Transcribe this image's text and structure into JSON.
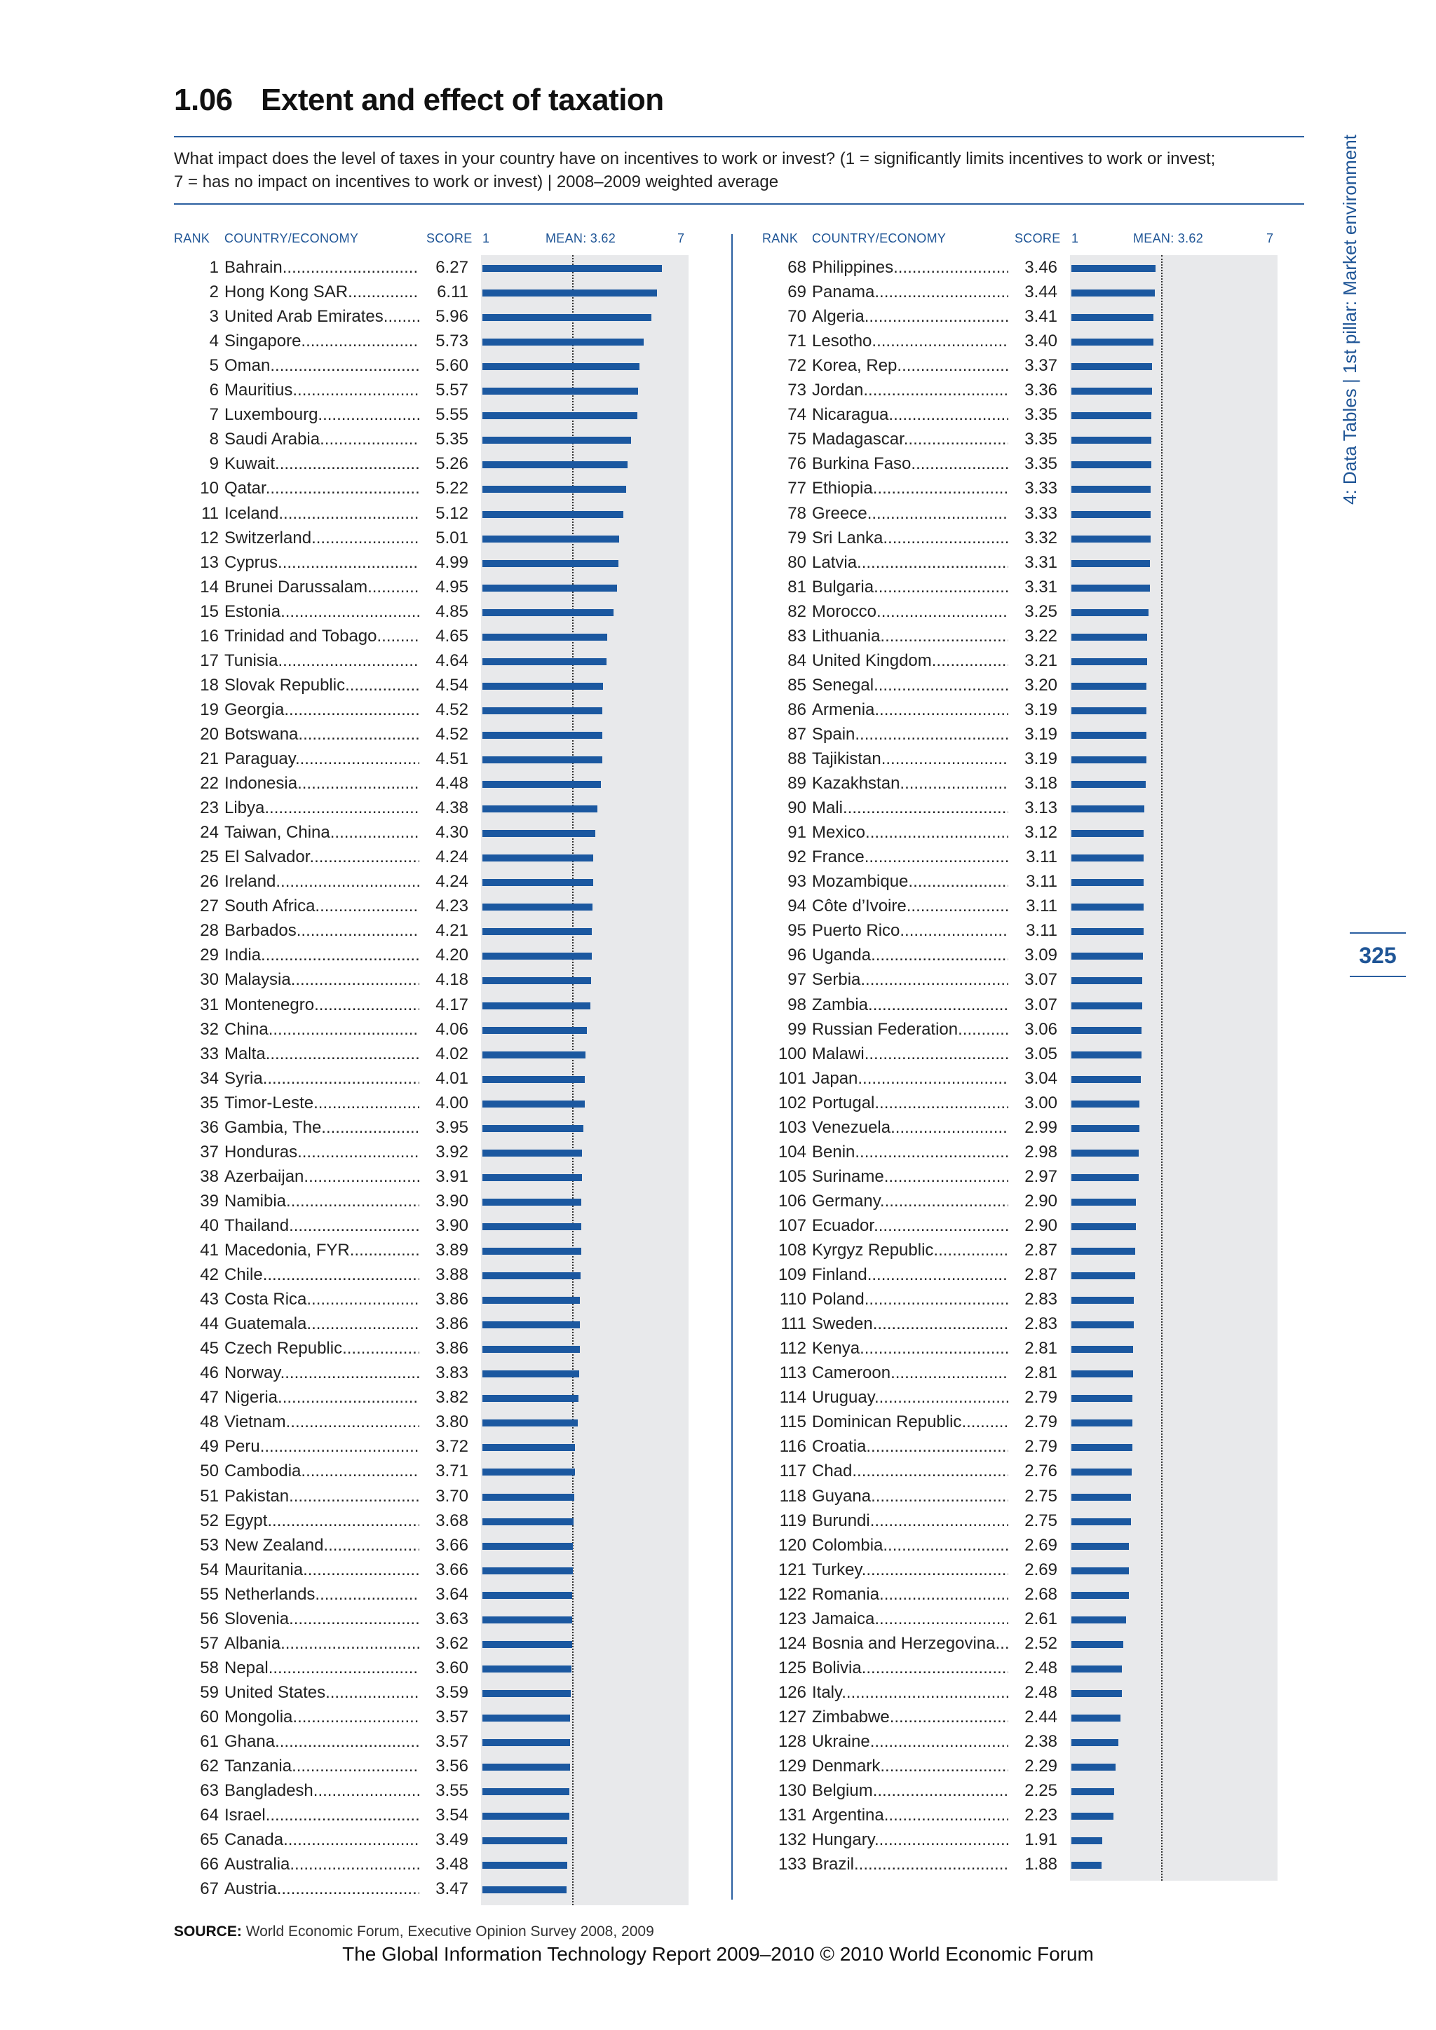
{
  "title": {
    "number": "1.06",
    "text": "Extent and effect of taxation"
  },
  "question_line1": "What impact does the level of taxes in your country have on incentives to work or invest? (1 = significantly limits incentives to work or invest;",
  "question_line2": "7 = has no impact on incentives to work or invest)  |  2008–2009 weighted average",
  "headers": {
    "rank": "RANK",
    "country": "COUNTRY/ECONOMY",
    "score": "SCORE",
    "min": "1",
    "mean": "MEAN: 3.62",
    "max": "7"
  },
  "sidebar": "4: Data Tables  |  1st pillar: Market environment",
  "page_number": "325",
  "source_label": "SOURCE:",
  "source_text": "World Economic Forum, Executive Opinion Survey 2008, 2009",
  "footer": "The Global Information Technology Report 2009–2010 © 2010 World Economic Forum",
  "colors": {
    "accent": "#1b58a0",
    "panel": "#e8e9eb",
    "rule": "#2a5fa0"
  },
  "chart_data": {
    "type": "bar",
    "mean": 3.62,
    "xlim": [
      1,
      7
    ],
    "rows": [
      {
        "rank": "1",
        "country": "Bahrain",
        "score": "6.27"
      },
      {
        "rank": "2",
        "country": "Hong Kong SAR",
        "score": "6.11"
      },
      {
        "rank": "3",
        "country": "United Arab Emirates",
        "score": "5.96"
      },
      {
        "rank": "4",
        "country": "Singapore",
        "score": "5.73"
      },
      {
        "rank": "5",
        "country": "Oman",
        "score": "5.60"
      },
      {
        "rank": "6",
        "country": "Mauritius",
        "score": "5.57"
      },
      {
        "rank": "7",
        "country": "Luxembourg",
        "score": "5.55"
      },
      {
        "rank": "8",
        "country": "Saudi Arabia",
        "score": "5.35"
      },
      {
        "rank": "9",
        "country": "Kuwait",
        "score": "5.26"
      },
      {
        "rank": "10",
        "country": "Qatar",
        "score": "5.22"
      },
      {
        "rank": "11",
        "country": "Iceland",
        "score": "5.12"
      },
      {
        "rank": "12",
        "country": "Switzerland",
        "score": "5.01"
      },
      {
        "rank": "13",
        "country": "Cyprus",
        "score": "4.99"
      },
      {
        "rank": "14",
        "country": "Brunei Darussalam",
        "score": "4.95"
      },
      {
        "rank": "15",
        "country": "Estonia",
        "score": "4.85"
      },
      {
        "rank": "16",
        "country": "Trinidad and Tobago",
        "score": "4.65"
      },
      {
        "rank": "17",
        "country": "Tunisia",
        "score": "4.64"
      },
      {
        "rank": "18",
        "country": "Slovak Republic",
        "score": "4.54"
      },
      {
        "rank": "19",
        "country": "Georgia",
        "score": "4.52"
      },
      {
        "rank": "20",
        "country": "Botswana",
        "score": "4.52"
      },
      {
        "rank": "21",
        "country": "Paraguay",
        "score": "4.51"
      },
      {
        "rank": "22",
        "country": "Indonesia",
        "score": "4.48"
      },
      {
        "rank": "23",
        "country": "Libya",
        "score": "4.38"
      },
      {
        "rank": "24",
        "country": "Taiwan, China",
        "score": "4.30"
      },
      {
        "rank": "25",
        "country": "El Salvador",
        "score": "4.24"
      },
      {
        "rank": "26",
        "country": "Ireland",
        "score": "4.24"
      },
      {
        "rank": "27",
        "country": "South Africa",
        "score": "4.23"
      },
      {
        "rank": "28",
        "country": "Barbados",
        "score": "4.21"
      },
      {
        "rank": "29",
        "country": "India",
        "score": "4.20"
      },
      {
        "rank": "30",
        "country": "Malaysia",
        "score": "4.18"
      },
      {
        "rank": "31",
        "country": "Montenegro",
        "score": "4.17"
      },
      {
        "rank": "32",
        "country": "China",
        "score": "4.06"
      },
      {
        "rank": "33",
        "country": "Malta",
        "score": "4.02"
      },
      {
        "rank": "34",
        "country": "Syria",
        "score": "4.01"
      },
      {
        "rank": "35",
        "country": "Timor-Leste",
        "score": "4.00"
      },
      {
        "rank": "36",
        "country": "Gambia, The",
        "score": "3.95"
      },
      {
        "rank": "37",
        "country": "Honduras",
        "score": "3.92"
      },
      {
        "rank": "38",
        "country": "Azerbaijan",
        "score": "3.91"
      },
      {
        "rank": "39",
        "country": "Namibia",
        "score": "3.90"
      },
      {
        "rank": "40",
        "country": "Thailand",
        "score": "3.90"
      },
      {
        "rank": "41",
        "country": "Macedonia, FYR",
        "score": "3.89"
      },
      {
        "rank": "42",
        "country": "Chile",
        "score": "3.88"
      },
      {
        "rank": "43",
        "country": "Costa Rica",
        "score": "3.86"
      },
      {
        "rank": "44",
        "country": "Guatemala",
        "score": "3.86"
      },
      {
        "rank": "45",
        "country": "Czech Republic",
        "score": "3.86"
      },
      {
        "rank": "46",
        "country": "Norway",
        "score": "3.83"
      },
      {
        "rank": "47",
        "country": "Nigeria",
        "score": "3.82"
      },
      {
        "rank": "48",
        "country": "Vietnam",
        "score": "3.80"
      },
      {
        "rank": "49",
        "country": "Peru",
        "score": "3.72"
      },
      {
        "rank": "50",
        "country": "Cambodia",
        "score": "3.71"
      },
      {
        "rank": "51",
        "country": "Pakistan",
        "score": "3.70"
      },
      {
        "rank": "52",
        "country": "Egypt",
        "score": "3.68"
      },
      {
        "rank": "53",
        "country": "New Zealand",
        "score": "3.66"
      },
      {
        "rank": "54",
        "country": "Mauritania",
        "score": "3.66"
      },
      {
        "rank": "55",
        "country": "Netherlands",
        "score": "3.64"
      },
      {
        "rank": "56",
        "country": "Slovenia",
        "score": "3.63"
      },
      {
        "rank": "57",
        "country": "Albania",
        "score": "3.62"
      },
      {
        "rank": "58",
        "country": "Nepal",
        "score": "3.60"
      },
      {
        "rank": "59",
        "country": "United States",
        "score": "3.59"
      },
      {
        "rank": "60",
        "country": "Mongolia",
        "score": "3.57"
      },
      {
        "rank": "61",
        "country": "Ghana",
        "score": "3.57"
      },
      {
        "rank": "62",
        "country": "Tanzania",
        "score": "3.56"
      },
      {
        "rank": "63",
        "country": "Bangladesh",
        "score": "3.55"
      },
      {
        "rank": "64",
        "country": "Israel",
        "score": "3.54"
      },
      {
        "rank": "65",
        "country": "Canada",
        "score": "3.49"
      },
      {
        "rank": "66",
        "country": "Australia",
        "score": "3.48"
      },
      {
        "rank": "67",
        "country": "Austria",
        "score": "3.47"
      },
      {
        "rank": "68",
        "country": "Philippines",
        "score": "3.46"
      },
      {
        "rank": "69",
        "country": "Panama",
        "score": "3.44"
      },
      {
        "rank": "70",
        "country": "Algeria",
        "score": "3.41"
      },
      {
        "rank": "71",
        "country": "Lesotho",
        "score": "3.40"
      },
      {
        "rank": "72",
        "country": "Korea, Rep.",
        "score": "3.37"
      },
      {
        "rank": "73",
        "country": "Jordan",
        "score": "3.36"
      },
      {
        "rank": "74",
        "country": "Nicaragua",
        "score": "3.35"
      },
      {
        "rank": "75",
        "country": "Madagascar",
        "score": "3.35"
      },
      {
        "rank": "76",
        "country": "Burkina Faso",
        "score": "3.35"
      },
      {
        "rank": "77",
        "country": "Ethiopia",
        "score": "3.33"
      },
      {
        "rank": "78",
        "country": "Greece",
        "score": "3.33"
      },
      {
        "rank": "79",
        "country": "Sri Lanka",
        "score": "3.32"
      },
      {
        "rank": "80",
        "country": "Latvia",
        "score": "3.31"
      },
      {
        "rank": "81",
        "country": "Bulgaria",
        "score": "3.31"
      },
      {
        "rank": "82",
        "country": "Morocco",
        "score": "3.25"
      },
      {
        "rank": "83",
        "country": "Lithuania",
        "score": "3.22"
      },
      {
        "rank": "84",
        "country": "United Kingdom",
        "score": "3.21"
      },
      {
        "rank": "85",
        "country": "Senegal",
        "score": "3.20"
      },
      {
        "rank": "86",
        "country": "Armenia",
        "score": "3.19"
      },
      {
        "rank": "87",
        "country": "Spain",
        "score": "3.19"
      },
      {
        "rank": "88",
        "country": "Tajikistan",
        "score": "3.19"
      },
      {
        "rank": "89",
        "country": "Kazakhstan",
        "score": "3.18"
      },
      {
        "rank": "90",
        "country": "Mali",
        "score": "3.13"
      },
      {
        "rank": "91",
        "country": "Mexico",
        "score": "3.12"
      },
      {
        "rank": "92",
        "country": "France",
        "score": "3.11"
      },
      {
        "rank": "93",
        "country": "Mozambique",
        "score": "3.11"
      },
      {
        "rank": "94",
        "country": "Côte d’Ivoire",
        "score": "3.11"
      },
      {
        "rank": "95",
        "country": "Puerto Rico",
        "score": "3.11"
      },
      {
        "rank": "96",
        "country": "Uganda",
        "score": "3.09"
      },
      {
        "rank": "97",
        "country": "Serbia",
        "score": "3.07"
      },
      {
        "rank": "98",
        "country": "Zambia",
        "score": "3.07"
      },
      {
        "rank": "99",
        "country": "Russian Federation",
        "score": "3.06"
      },
      {
        "rank": "100",
        "country": "Malawi",
        "score": "3.05"
      },
      {
        "rank": "101",
        "country": "Japan",
        "score": "3.04"
      },
      {
        "rank": "102",
        "country": "Portugal",
        "score": "3.00"
      },
      {
        "rank": "103",
        "country": "Venezuela",
        "score": "2.99"
      },
      {
        "rank": "104",
        "country": "Benin",
        "score": "2.98"
      },
      {
        "rank": "105",
        "country": "Suriname",
        "score": "2.97"
      },
      {
        "rank": "106",
        "country": "Germany",
        "score": "2.90"
      },
      {
        "rank": "107",
        "country": "Ecuador",
        "score": "2.90"
      },
      {
        "rank": "108",
        "country": "Kyrgyz Republic",
        "score": "2.87"
      },
      {
        "rank": "109",
        "country": "Finland",
        "score": "2.87"
      },
      {
        "rank": "110",
        "country": "Poland",
        "score": "2.83"
      },
      {
        "rank": "111",
        "country": "Sweden",
        "score": "2.83"
      },
      {
        "rank": "112",
        "country": "Kenya",
        "score": "2.81"
      },
      {
        "rank": "113",
        "country": "Cameroon",
        "score": "2.81"
      },
      {
        "rank": "114",
        "country": "Uruguay",
        "score": "2.79"
      },
      {
        "rank": "115",
        "country": "Dominican Republic",
        "score": "2.79"
      },
      {
        "rank": "116",
        "country": "Croatia",
        "score": "2.79"
      },
      {
        "rank": "117",
        "country": "Chad",
        "score": "2.76"
      },
      {
        "rank": "118",
        "country": "Guyana",
        "score": "2.75"
      },
      {
        "rank": "119",
        "country": "Burundi",
        "score": "2.75"
      },
      {
        "rank": "120",
        "country": "Colombia",
        "score": "2.69"
      },
      {
        "rank": "121",
        "country": "Turkey",
        "score": "2.69"
      },
      {
        "rank": "122",
        "country": "Romania",
        "score": "2.68"
      },
      {
        "rank": "123",
        "country": "Jamaica",
        "score": "2.61"
      },
      {
        "rank": "124",
        "country": "Bosnia and Herzegovina",
        "score": "2.52"
      },
      {
        "rank": "125",
        "country": "Bolivia",
        "score": "2.48"
      },
      {
        "rank": "126",
        "country": "Italy",
        "score": "2.48"
      },
      {
        "rank": "127",
        "country": "Zimbabwe",
        "score": "2.44"
      },
      {
        "rank": "128",
        "country": "Ukraine",
        "score": "2.38"
      },
      {
        "rank": "129",
        "country": "Denmark",
        "score": "2.29"
      },
      {
        "rank": "130",
        "country": "Belgium",
        "score": "2.25"
      },
      {
        "rank": "131",
        "country": "Argentina",
        "score": "2.23"
      },
      {
        "rank": "132",
        "country": "Hungary",
        "score": "1.91"
      },
      {
        "rank": "133",
        "country": "Brazil",
        "score": "1.88"
      }
    ]
  }
}
